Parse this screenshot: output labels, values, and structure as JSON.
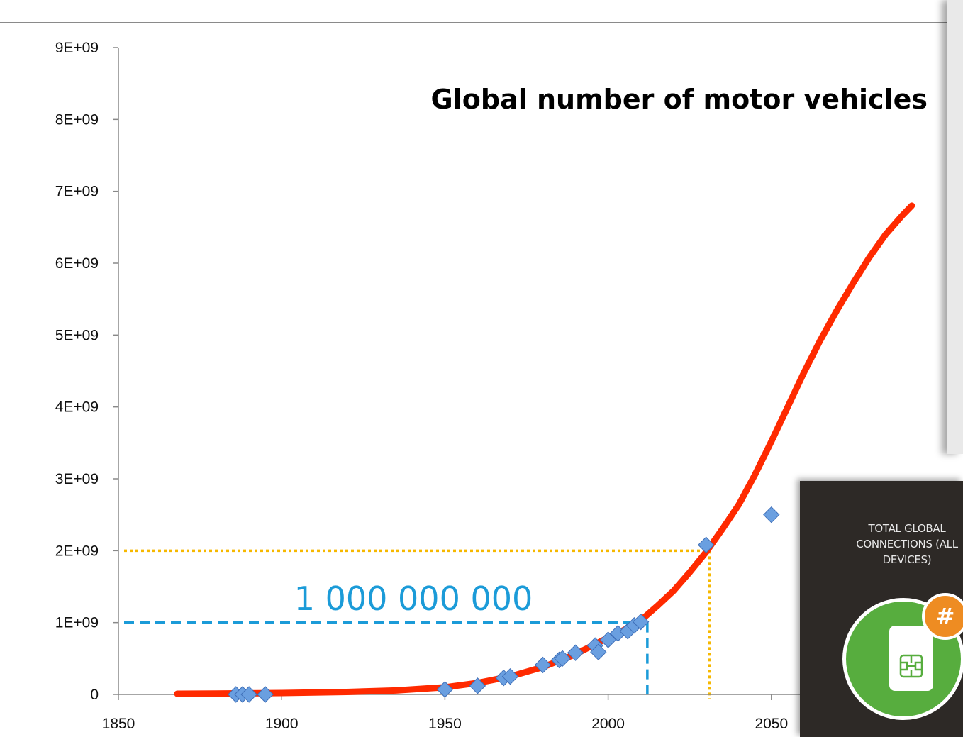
{
  "chart_data": {
    "type": "scatter",
    "title": "Global number of motor vehicles",
    "xlabel": "",
    "ylabel": "",
    "xlim": [
      1850,
      2100
    ],
    "ylim": [
      0,
      9000000000
    ],
    "x_ticks": [
      "1850",
      "1900",
      "1950",
      "2000",
      "2050"
    ],
    "y_ticks": [
      "0",
      "1E+09",
      "2E+09",
      "3E+09",
      "4E+09",
      "5E+09",
      "6E+09",
      "7E+09",
      "8E+09",
      "9E+09"
    ],
    "series": [
      {
        "kind": "markers",
        "color": "#6a9fe0",
        "x": [
          1886,
          1888,
          1890,
          1895,
          1950,
          1960,
          1968,
          1970,
          1980,
          1985,
          1986,
          1990,
          1996,
          1997,
          2000,
          2003,
          2006,
          2008,
          2010,
          2030,
          2050
        ],
        "y": [
          0,
          0,
          0,
          0,
          70000000,
          120000000,
          230000000,
          250000000,
          410000000,
          480000000,
          500000000,
          580000000,
          680000000,
          590000000,
          760000000,
          850000000,
          880000000,
          960000000,
          1010000000,
          2080000000,
          2500000000
        ]
      },
      {
        "kind": "fitted-curve",
        "color": "#ff2a00",
        "x": [
          1868,
          1880,
          1900,
          1920,
          1935,
          1950,
          1960,
          1970,
          1980,
          1990,
          2000,
          2005,
          2010,
          2015,
          2020,
          2025,
          2030,
          2035,
          2040,
          2045,
          2050,
          2055,
          2060,
          2065,
          2070,
          2075,
          2080,
          2085,
          2090,
          2093
        ],
        "y": [
          10000000,
          12000000,
          20000000,
          35000000,
          55000000,
          100000000,
          160000000,
          250000000,
          380000000,
          560000000,
          790000000,
          900000000,
          1030000000,
          1230000000,
          1440000000,
          1700000000,
          1980000000,
          2300000000,
          2640000000,
          3060000000,
          3520000000,
          4000000000,
          4480000000,
          4930000000,
          5340000000,
          5720000000,
          6080000000,
          6400000000,
          6660000000,
          6800000000
        ]
      }
    ],
    "guides": [
      {
        "color": "#1b9bd8",
        "style": "dashed",
        "x": 2012,
        "y": 1000000000
      },
      {
        "color": "#f6b800",
        "style": "dotted",
        "x": 2031,
        "y": 2000000000
      }
    ],
    "annotation": "1 000 000 000",
    "grid": false
  },
  "overlay": {
    "panel_label": "TOTAL GLOBAL CONNECTIONS (ALL DEVICES)",
    "badge_symbol": "#",
    "colors": {
      "panel": "#2d2926",
      "circle": "#57ad3e",
      "badge": "#ee8c22"
    }
  }
}
